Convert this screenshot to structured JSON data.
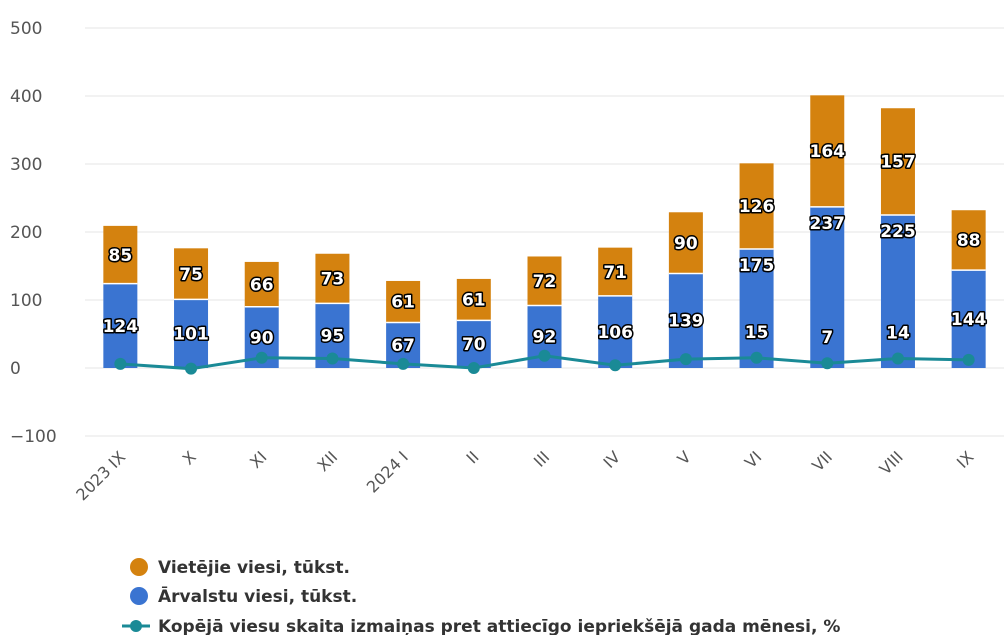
{
  "chart_data": {
    "type": "bar",
    "stacked": true,
    "categories": [
      "2023 IX",
      "X",
      "XI",
      "XII",
      "2024 I",
      "II",
      "III",
      "IV",
      "V",
      "VI",
      "VII",
      "VIII",
      "IX"
    ],
    "series": [
      {
        "name": "Vietējie viesi, tūkst.",
        "type": "bar",
        "color": "#d4820f",
        "values": [
          85,
          75,
          66,
          73,
          61,
          61,
          72,
          71,
          90,
          126,
          164,
          157,
          88
        ]
      },
      {
        "name": "Ārvalstu viesi, tūkst.",
        "type": "bar",
        "color": "#3a74d1",
        "values": [
          124,
          101,
          90,
          95,
          67,
          70,
          92,
          106,
          139,
          175,
          237,
          225,
          144
        ]
      },
      {
        "name": "Kopējā viesu skaita izmaiņas pret attiecīgo iepriekšējā gada mēnesi, %",
        "type": "line",
        "color": "#1a8a96",
        "values": [
          6,
          -1,
          15,
          14,
          6,
          0,
          18,
          4,
          13,
          15,
          7,
          14,
          12
        ],
        "labeled_indices": [
          9,
          10,
          11
        ]
      }
    ],
    "ylim": [
      -100,
      500
    ],
    "yticks": [
      "−100",
      "0",
      "100",
      "200",
      "300",
      "400",
      "500"
    ],
    "grid": true,
    "legend": "bottom-left"
  }
}
